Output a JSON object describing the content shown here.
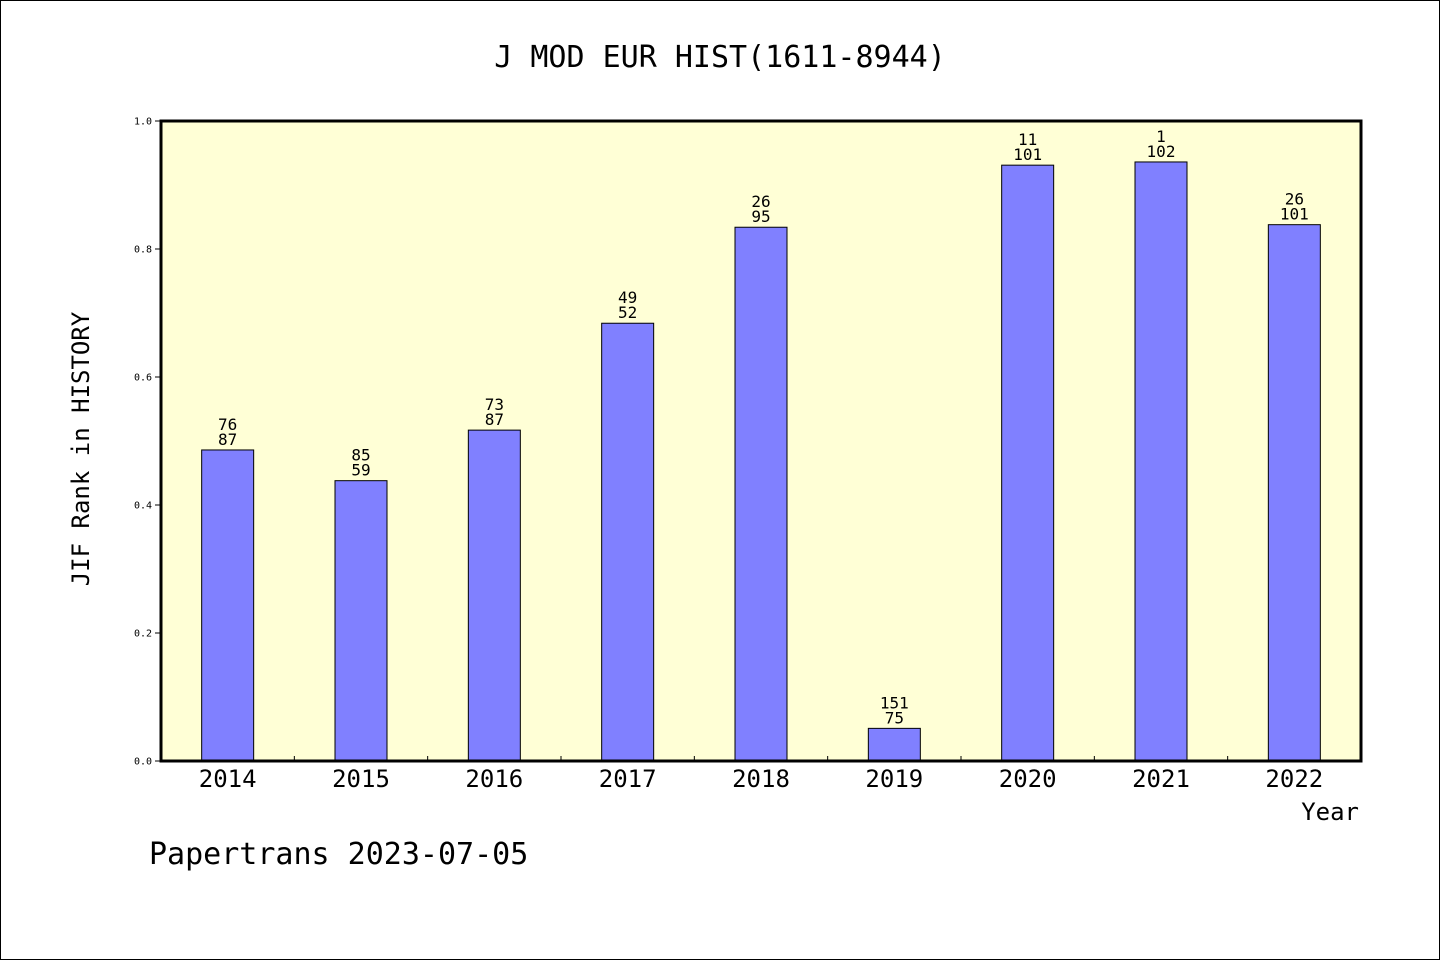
{
  "chart_data": {
    "type": "bar",
    "title": "J MOD EUR HIST(1611-8944)",
    "ylabel": "JIF Rank in HISTORY",
    "xlabel": "Year",
    "categories": [
      "2014",
      "2015",
      "2016",
      "2017",
      "2018",
      "2019",
      "2020",
      "2021",
      "2022"
    ],
    "values": [
      0.486,
      0.438,
      0.517,
      0.684,
      0.834,
      0.051,
      0.931,
      0.936,
      0.838
    ],
    "bar_labels_top": [
      "76",
      "85",
      "73",
      "49",
      "26",
      "151",
      "11",
      "1",
      "26"
    ],
    "bar_labels_bottom": [
      "87",
      "59",
      "87",
      "52",
      "95",
      "75",
      "101",
      "102",
      "101"
    ],
    "ylim": [
      0,
      1.0
    ],
    "yticks": [
      "0.0",
      "0.2",
      "0.4",
      "0.6",
      "0.8",
      "1.0"
    ],
    "grid": false,
    "colors": {
      "plot_background": "#ffffd6",
      "bar_fill": "#8080ff",
      "bar_stroke": "#000000"
    }
  },
  "footer": "Papertrans 2023-07-05"
}
